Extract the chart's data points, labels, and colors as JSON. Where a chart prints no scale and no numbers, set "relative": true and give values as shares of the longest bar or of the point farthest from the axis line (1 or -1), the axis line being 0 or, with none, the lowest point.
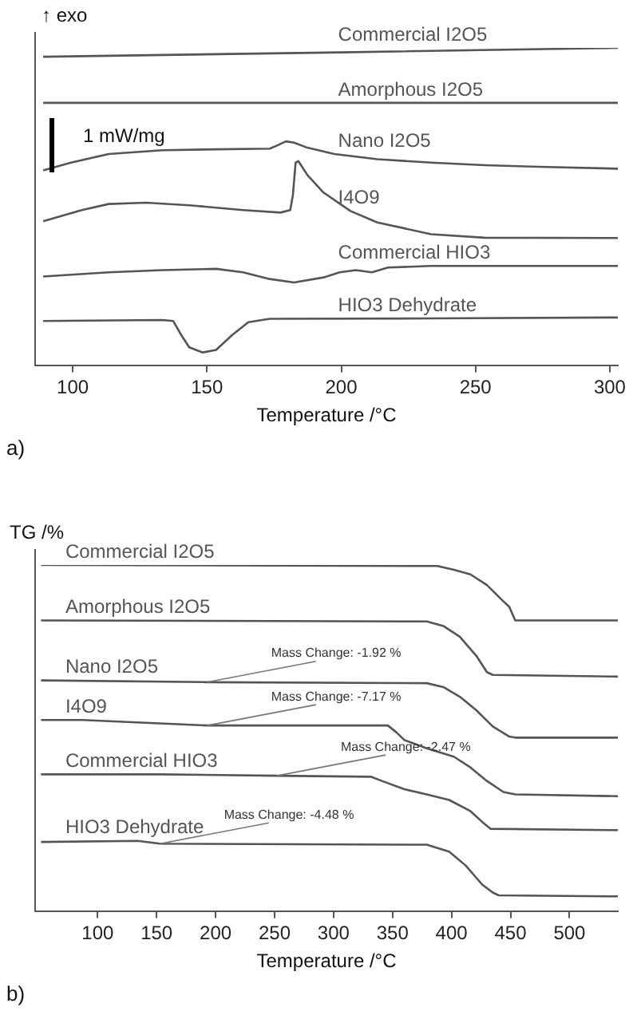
{
  "chart_data": [
    {
      "type": "line",
      "ylabel": "↑ exo",
      "xlabel": "Temperature /°C",
      "relative": true,
      "tick_labels": "x",
      "legend": false,
      "grid": false,
      "xlim": [
        86,
        303
      ],
      "xticks": [
        100,
        150,
        200,
        250,
        300
      ],
      "annotations": [
        "1 mW/mg",
        "a)"
      ],
      "series": [
        {
          "name": "Commercial I2O5",
          "color": "#555555",
          "x": [
            89,
            200,
            303
          ],
          "values": [
            0.972,
            0.986,
            1.0
          ]
        },
        {
          "name": "Amorphous I2O5",
          "color": "#555555",
          "x": [
            89,
            303
          ],
          "values": [
            0.827,
            0.827
          ]
        },
        {
          "name": "Nano I2O5",
          "color": "#555555",
          "x": [
            89,
            99.4,
            113.4,
            133.4,
            153.4,
            173.4,
            176.4,
            179.4,
            182.4,
            187.4,
            197.4,
            213.4,
            233.4,
            253.4,
            273.4,
            303
          ],
          "values": [
            0.615,
            0.639,
            0.666,
            0.678,
            0.681,
            0.683,
            0.694,
            0.706,
            0.702,
            0.686,
            0.666,
            0.65,
            0.639,
            0.631,
            0.626,
            0.62
          ]
        },
        {
          "name": "I4O9",
          "color": "#555555",
          "x": [
            89,
            103.4,
            113.4,
            127.4,
            143.4,
            163.4,
            177.4,
            181,
            182,
            183,
            184,
            187.4,
            193.4,
            203.4,
            213.4,
            233.4,
            253.4,
            303
          ],
          "values": [
            0.455,
            0.49,
            0.509,
            0.513,
            0.505,
            0.49,
            0.482,
            0.49,
            0.537,
            0.639,
            0.644,
            0.6,
            0.545,
            0.487,
            0.451,
            0.414,
            0.403,
            0.402
          ]
        },
        {
          "name": "Commercial HIO3",
          "color": "#555555",
          "x": [
            89,
            113.4,
            133.4,
            153.4,
            163.4,
            173.4,
            182.4,
            193.4,
            199.4,
            205.4,
            211.4,
            217.4,
            233.4,
            303
          ],
          "values": [
            0.281,
            0.294,
            0.301,
            0.305,
            0.294,
            0.273,
            0.262,
            0.278,
            0.294,
            0.301,
            0.294,
            0.309,
            0.314,
            0.314
          ]
        },
        {
          "name": "HIO3 Dehydrate",
          "color": "#555555",
          "x": [
            89,
            133.4,
            137.4,
            140.4,
            143.4,
            148.4,
            153.4,
            159.4,
            165.4,
            173.4,
            233.4,
            303
          ],
          "values": [
            0.141,
            0.144,
            0.141,
            0.097,
            0.058,
            0.042,
            0.05,
            0.097,
            0.137,
            0.148,
            0.149,
            0.152
          ]
        }
      ]
    },
    {
      "type": "line",
      "ylabel": "TG /%",
      "xlabel": "Temperature /°C",
      "relative": true,
      "tick_labels": "x",
      "legend": false,
      "grid": false,
      "xlim": [
        47,
        541
      ],
      "xticks": [
        100,
        150,
        200,
        250,
        300,
        350,
        400,
        450,
        500
      ],
      "annotations": [
        "b)",
        {
          "text": "Mass Change: -1.92 %",
          "x": 193,
          "y": 0.662
        },
        {
          "text": "Mass Change: -7.17 %",
          "x": 193,
          "y": 0.537
        },
        {
          "text": "Mass Change: -2.47 %",
          "x": 252,
          "y": 0.392
        },
        {
          "text": "Mass Change: -4.48 %",
          "x": 153,
          "y": 0.196
        }
      ],
      "series": [
        {
          "name": "Commercial I2O5",
          "color": "#555555",
          "x": [
            52,
            388,
            402,
            416,
            430,
            444,
            449,
            454,
            541
          ],
          "values": [
            1.0,
            0.997,
            0.986,
            0.973,
            0.942,
            0.895,
            0.879,
            0.84,
            0.84
          ]
        },
        {
          "name": "Amorphous I2O5",
          "color": "#555555",
          "x": [
            52,
            379,
            393,
            407,
            421,
            430,
            435,
            541
          ],
          "values": [
            0.84,
            0.837,
            0.824,
            0.793,
            0.738,
            0.691,
            0.683,
            0.678
          ]
        },
        {
          "name": "Nano I2O5",
          "color": "#555555",
          "x": [
            52,
            191,
            379,
            393,
            407,
            421,
            435,
            449,
            454,
            541
          ],
          "values": [
            0.667,
            0.662,
            0.659,
            0.648,
            0.62,
            0.581,
            0.534,
            0.505,
            0.502,
            0.502
          ]
        },
        {
          "name": "I4O9",
          "color": "#555555",
          "x": [
            52,
            87,
            193,
            346,
            353,
            360,
            379,
            402,
            416,
            430,
            444,
            454,
            541
          ],
          "values": [
            0.553,
            0.553,
            0.537,
            0.537,
            0.518,
            0.495,
            0.471,
            0.447,
            0.416,
            0.377,
            0.345,
            0.338,
            0.333
          ]
        },
        {
          "name": "Commercial HIO3",
          "color": "#555555",
          "x": [
            52,
            153,
            252,
            332,
            341,
            360,
            379,
            398,
            416,
            426,
            433,
            541
          ],
          "values": [
            0.396,
            0.396,
            0.392,
            0.389,
            0.377,
            0.353,
            0.338,
            0.322,
            0.29,
            0.259,
            0.239,
            0.235
          ]
        },
        {
          "name": "HIO3 Dehydrate",
          "color": "#555555",
          "x": [
            52,
            134,
            153,
            379,
            398,
            412,
            426,
            435,
            440,
            541
          ],
          "values": [
            0.201,
            0.204,
            0.196,
            0.193,
            0.173,
            0.133,
            0.078,
            0.055,
            0.047,
            0.044
          ]
        }
      ]
    }
  ]
}
